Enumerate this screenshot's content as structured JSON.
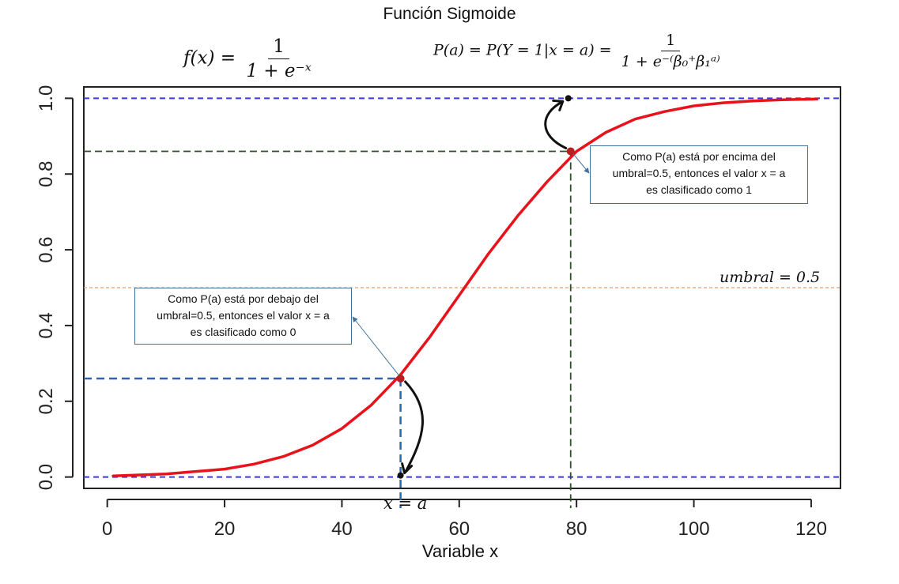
{
  "title": "Función Sigmoide",
  "formula_left": {
    "lhs": "f(x) =",
    "num": "1",
    "den": "1 + e⁻ˣ"
  },
  "formula_right": {
    "lhs": "P(a) = P(Y = 1|x = a) =",
    "num": "1",
    "den": "1 + e⁻⁽β₀⁺β₁ᵃ⁾"
  },
  "callout_below": {
    "line1": "Como P(a) está por debajo del",
    "line2": "umbral=0.5, entonces el valor x = a",
    "line3": "es clasificado como 0"
  },
  "callout_above": {
    "line1": "Como P(a) está por encima del",
    "line2": "umbral=0.5, entonces el valor x = a",
    "line3": "es clasificado como 1"
  },
  "umbral_label": "umbral = 0.5",
  "x_eq_a_label": "x = a",
  "colors": {
    "curve": "#e8121b",
    "hline": "#3a3ae0",
    "threshold": "#e8a06a",
    "low_guides": "#2e63b5",
    "high_guides": "#2f4f2a",
    "point": "#b22222",
    "callout_border": "#41719c"
  },
  "chart_data": {
    "type": "line",
    "title": "Función Sigmoide",
    "xlabel": "Variable x",
    "ylabel": "",
    "xlim": [
      -4,
      125
    ],
    "ylim": [
      -0.03,
      1.03
    ],
    "xticks": [
      0,
      20,
      40,
      60,
      80,
      100,
      120
    ],
    "yticks": [
      0.0,
      0.2,
      0.4,
      0.6,
      0.8,
      1.0
    ],
    "ytick_labels": [
      "0.0",
      "0.2",
      "0.4",
      "0.6",
      "0.8",
      "1.0"
    ],
    "series": [
      {
        "x": [
          1,
          10,
          20,
          25,
          30,
          35,
          40,
          45,
          50,
          55,
          60,
          65,
          70,
          75,
          80,
          85,
          90,
          95,
          100,
          105,
          110,
          115,
          121
        ],
        "y": [
          0.003,
          0.008,
          0.021,
          0.034,
          0.054,
          0.084,
          0.128,
          0.19,
          0.27,
          0.37,
          0.48,
          0.59,
          0.69,
          0.78,
          0.86,
          0.91,
          0.945,
          0.965,
          0.98,
          0.988,
          0.993,
          0.996,
          0.998
        ]
      }
    ],
    "threshold": 0.5,
    "reference_lines_y": [
      0.0,
      1.0
    ],
    "points": [
      {
        "x": 50,
        "y": 0.26,
        "class": 0
      },
      {
        "x": 79,
        "y": 0.86,
        "class": 1
      }
    ]
  }
}
